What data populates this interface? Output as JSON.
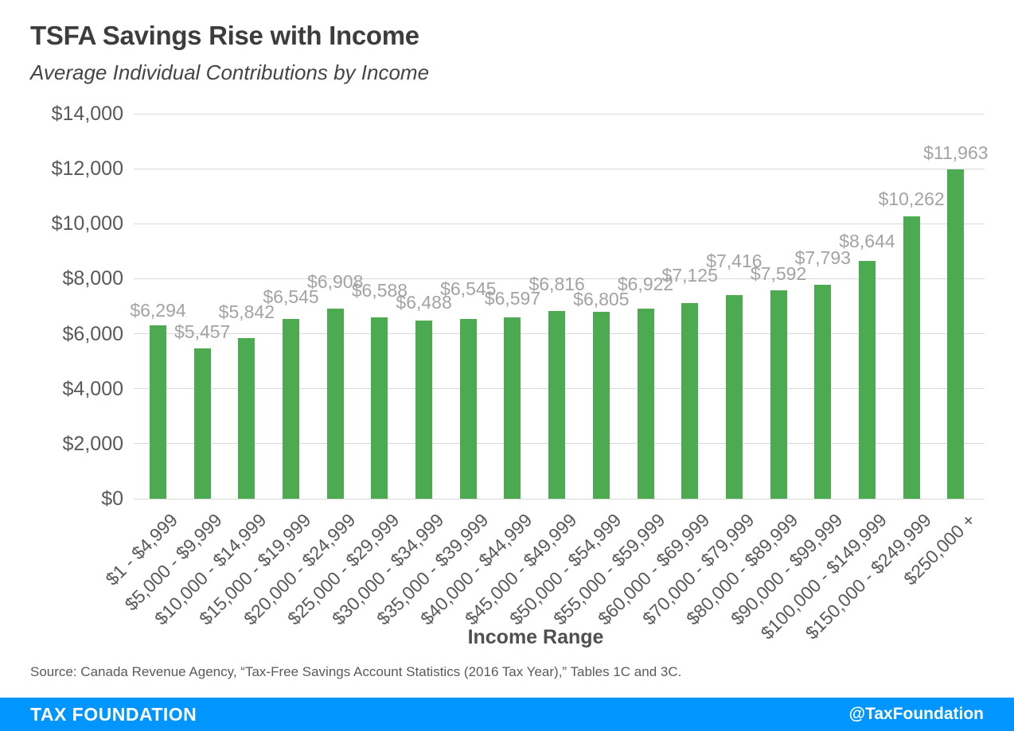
{
  "header": {
    "title": "TSFA Savings Rise with Income",
    "subtitle": "Average Individual Contributions by Income"
  },
  "chart_data": {
    "type": "bar",
    "title": "TSFA Savings Rise with Income",
    "subtitle": "Average Individual Contributions by Income",
    "xlabel": "Income Range",
    "ylabel": "",
    "ylim": [
      0,
      14000
    ],
    "ytick_step": 2000,
    "ytick_labels": [
      "$0",
      "$2,000",
      "$4,000",
      "$6,000",
      "$8,000",
      "$10,000",
      "$12,000",
      "$14,000"
    ],
    "grid": true,
    "legend": "none",
    "bar_color": "#4cab51",
    "value_label_color": "#a3a3a3",
    "categories": [
      "$1 - $4,999",
      "$5,000 - $9,999",
      "$10,000 - $14,999",
      "$15,000 - $19,999",
      "$20,000 - $24,999",
      "$25,000 - $29,999",
      "$30,000 - $34,999",
      "$35,000 - $39,999",
      "$40,000 - $44,999",
      "$45,000 - $49,999",
      "$50,000 - $54,999",
      "$55,000 - $59,999",
      "$60,000 - $69,999",
      "$70,000 - $79,999",
      "$80,000 - $89,999",
      "$90,000 - $99,999",
      "$100,000 - $149,999",
      "$150,000 - $249,999",
      "$250,000 +"
    ],
    "values": [
      6294,
      5457,
      5842,
      6545,
      6908,
      6588,
      6488,
      6545,
      6597,
      6816,
      6805,
      6922,
      7125,
      7416,
      7592,
      7793,
      8644,
      10262,
      11963
    ],
    "label_gaps": [
      6,
      8,
      20,
      15,
      21,
      21,
      10,
      25,
      11,
      21,
      3,
      18,
      22,
      30,
      8,
      21,
      12,
      9,
      8
    ]
  },
  "footer": {
    "source": "Source: Canada Revenue Agency, “Tax-Free Savings Account Statistics (2016 Tax Year),” Tables 1C and 3C.",
    "brand": "TAX FOUNDATION",
    "social": "@TaxFoundation",
    "bar_color": "#0095ff"
  }
}
